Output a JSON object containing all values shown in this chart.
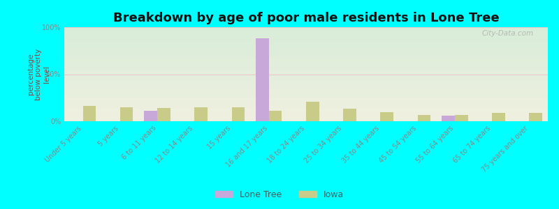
{
  "title": "Breakdown by age of poor male residents in Lone Tree",
  "ylabel": "percentage\nbelow poverty\nlevel",
  "categories": [
    "Under 5 years",
    "5 years",
    "6 to 11 years",
    "12 to 14 years",
    "15 years",
    "16 and 17 years",
    "18 to 24 years",
    "25 to 34 years",
    "35 to 44 years",
    "45 to 54 years",
    "55 to 64 years",
    "65 to 74 years",
    "75 years and over"
  ],
  "lone_tree": [
    0,
    0,
    11,
    0,
    0,
    88,
    0,
    0,
    0,
    0,
    6,
    0,
    0
  ],
  "iowa": [
    16,
    15,
    14,
    15,
    15,
    11,
    21,
    13,
    10,
    7,
    7,
    9,
    9
  ],
  "lone_tree_color": "#c8a8d8",
  "iowa_color": "#c8cc88",
  "background_color": "#00ffff",
  "plot_bg_top": "#d8edd8",
  "plot_bg_bottom": "#f0f0e0",
  "bar_width": 0.35,
  "ylim": [
    0,
    100
  ],
  "yticks": [
    0,
    50,
    100
  ],
  "ytick_labels": [
    "0%",
    "50%",
    "100%"
  ],
  "title_fontsize": 13,
  "ylabel_fontsize": 7.5,
  "tick_fontsize": 7,
  "legend_labels": [
    "Lone Tree",
    "Iowa"
  ],
  "legend_fontsize": 9,
  "watermark": "City-Data.com",
  "grid_color": "#e8c8c8",
  "ylabel_color": "#884444",
  "tick_color": "#888888"
}
